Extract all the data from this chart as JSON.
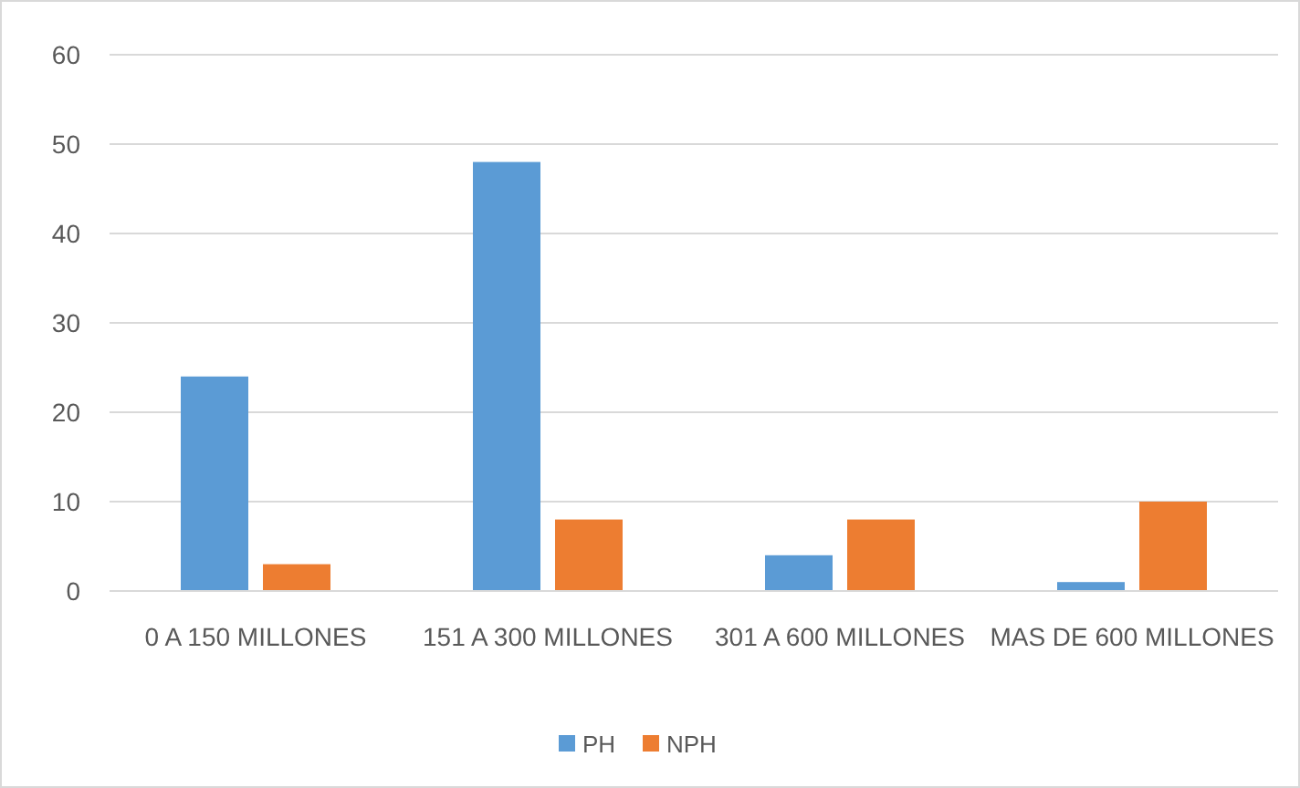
{
  "chart_data": {
    "type": "bar",
    "categories": [
      "0 A 150 MILLONES",
      "151 A 300 MILLONES",
      "301 A 600 MILLONES",
      "MAS DE 600 MILLONES"
    ],
    "series": [
      {
        "name": "PH",
        "color": "#5b9bd5",
        "values": [
          24,
          48,
          4,
          1
        ]
      },
      {
        "name": "NPH",
        "color": "#ed7d31",
        "values": [
          3,
          8,
          8,
          10
        ]
      }
    ],
    "ylim": [
      0,
      60
    ],
    "yticks": [
      0,
      10,
      20,
      30,
      40,
      50,
      60
    ],
    "grid": "y",
    "legend": "bottom"
  }
}
